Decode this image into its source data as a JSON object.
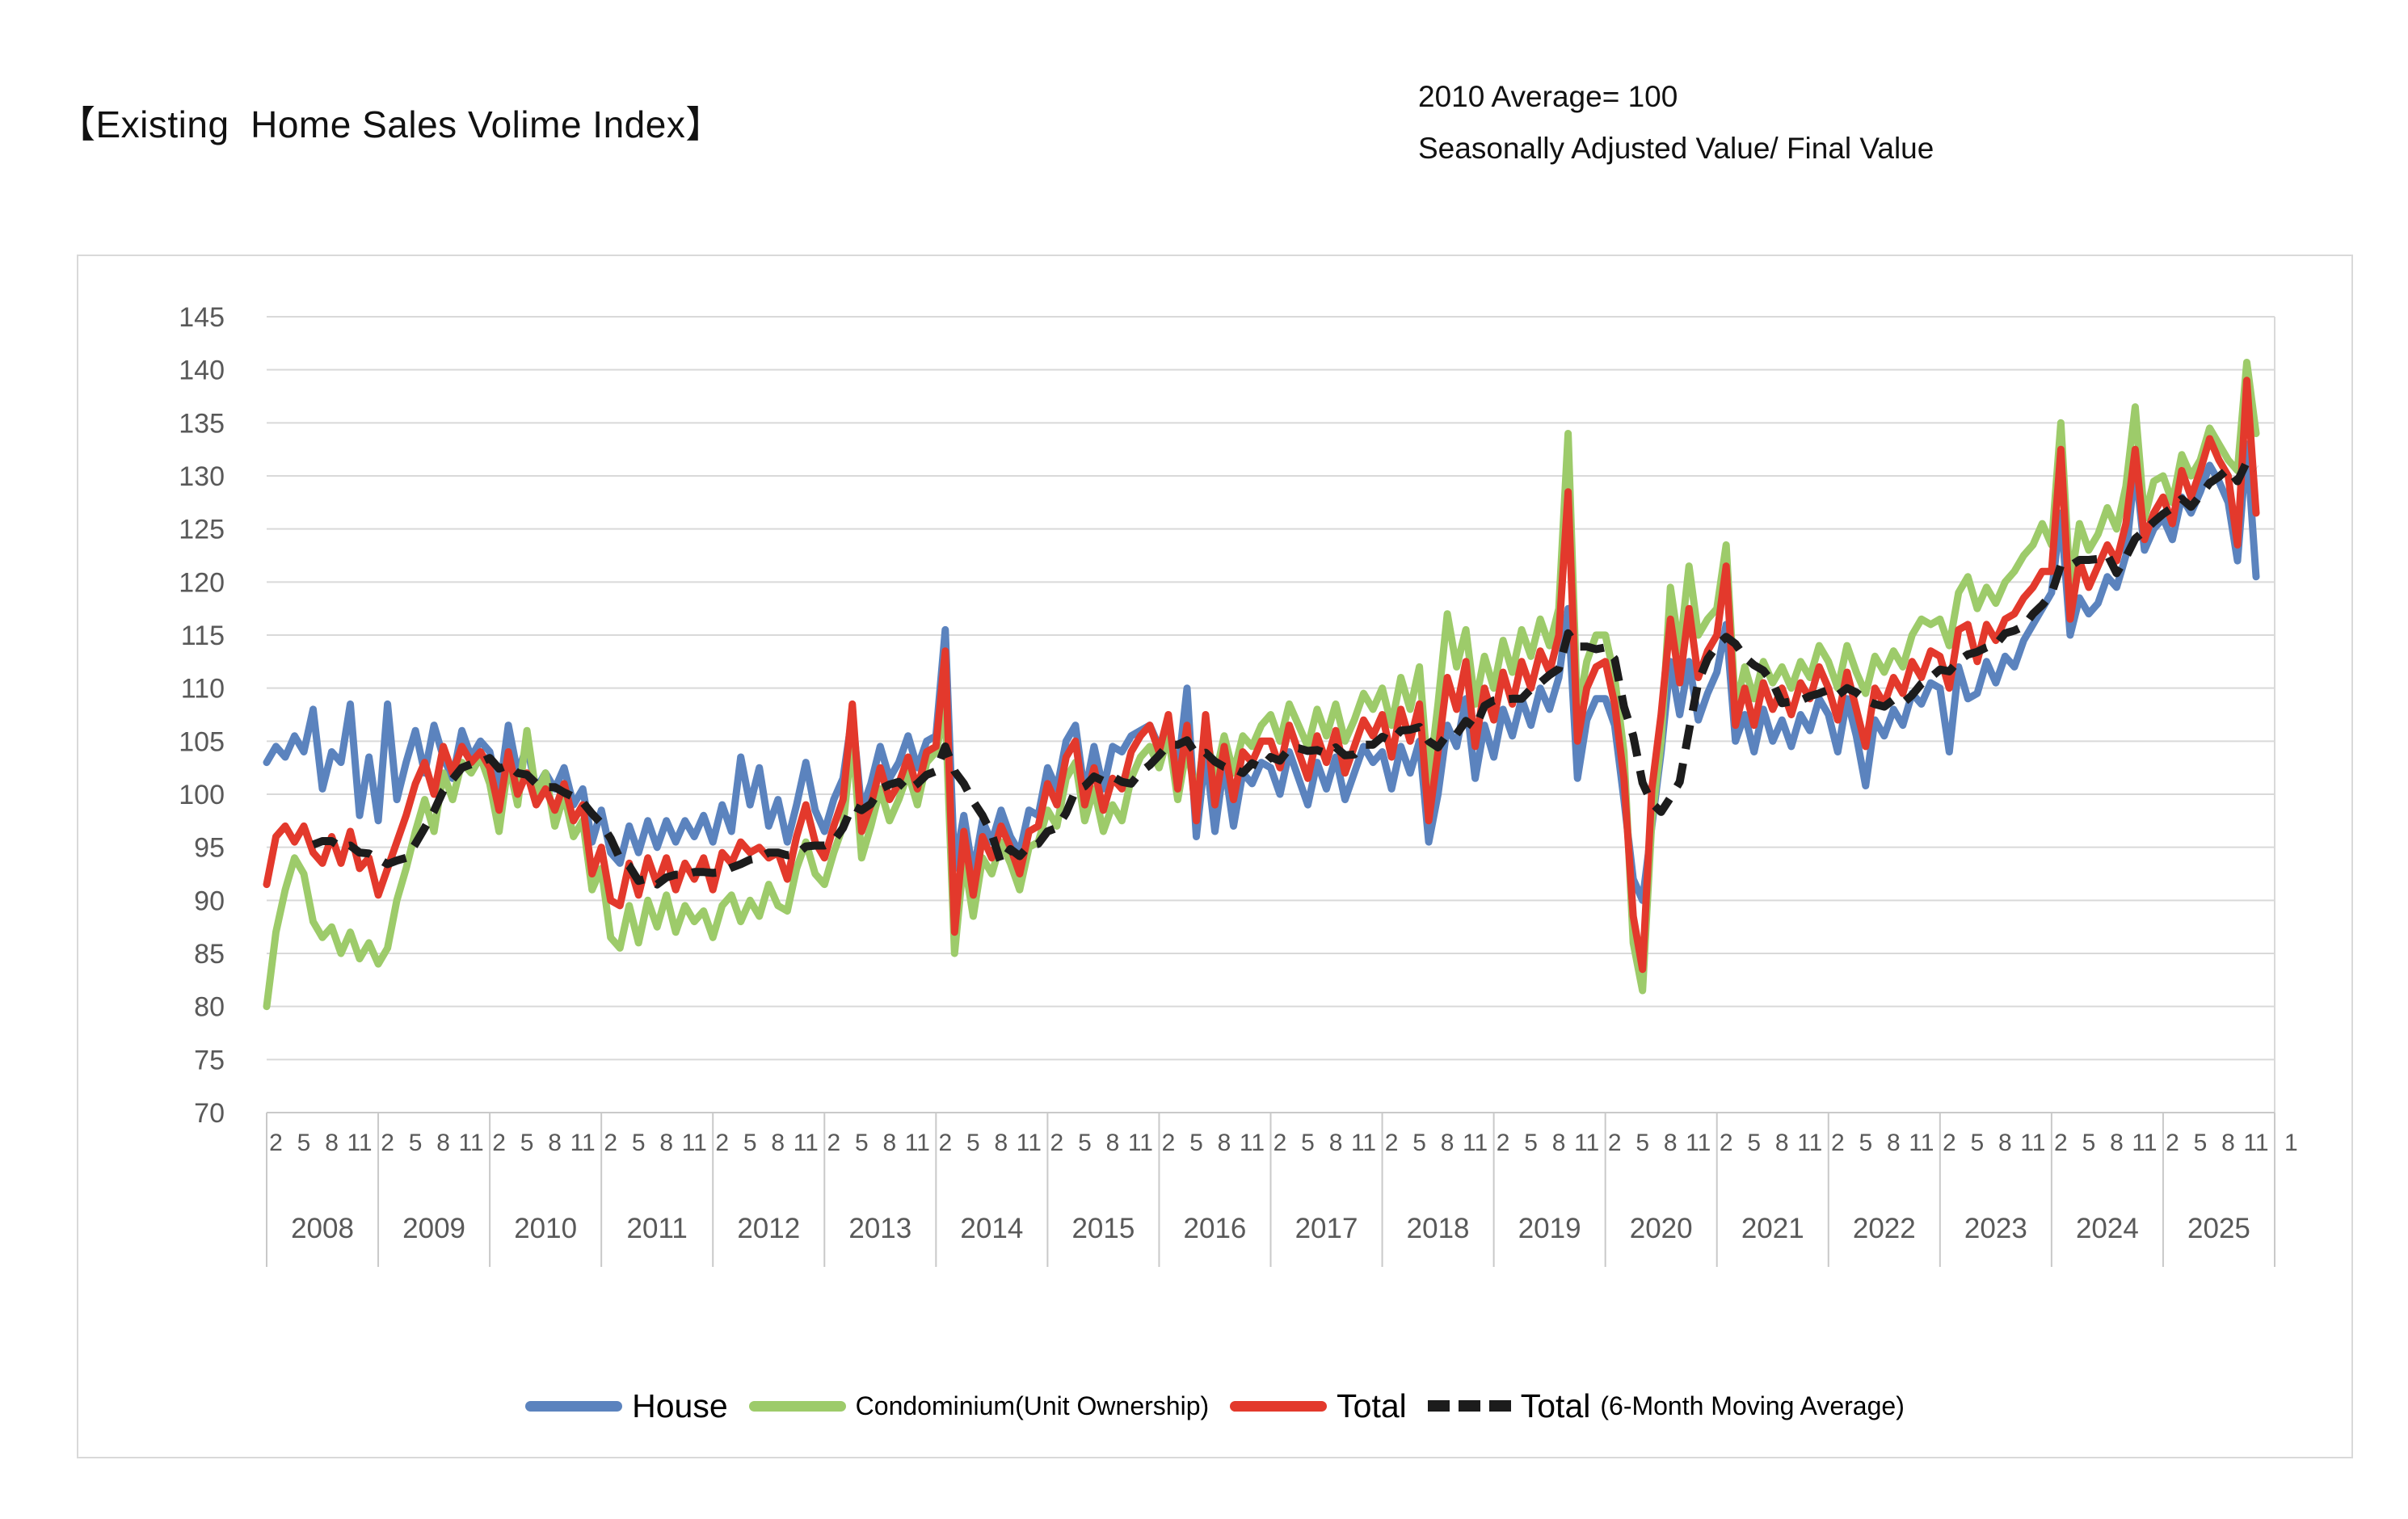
{
  "header": {
    "title": "【Existing  Home Sales Volime Index】",
    "note_line1": "2010 Average= 100",
    "note_line2": "Seasonally Adjusted Value/ Final Value"
  },
  "legend": {
    "house": "House",
    "condominium": "Condominium(Unit Ownership)",
    "total": "Total",
    "ma_main": "Total",
    "ma_suffix": "(6-Month Moving Average)"
  },
  "chart_data": {
    "type": "line",
    "title": "【Existing  Home Sales Volime Index】",
    "subtitle": "2010 Average= 100 / Seasonally Adjusted Value / Final Value",
    "ylim": [
      70,
      145
    ],
    "ytick_step": 5,
    "ytick_labels": [
      145,
      140,
      135,
      130,
      125,
      120,
      115,
      110,
      105,
      100,
      95,
      90,
      85,
      80,
      75,
      70
    ],
    "grid": "horizontal",
    "legend_position": "bottom",
    "x_axis": {
      "start_year": 2008,
      "start_month": 1,
      "years": [
        2008,
        2009,
        2010,
        2011,
        2012,
        2013,
        2014,
        2015,
        2016,
        2017,
        2018,
        2019,
        2020,
        2021,
        2022,
        2023,
        2024,
        2025
      ],
      "month_tick_labels": [
        2,
        5,
        8,
        11
      ],
      "trailing_tick_label": "1"
    },
    "colors": {
      "house": "#5B83BE",
      "condominium": "#9DCB6A",
      "total": "#E3392C",
      "moving_average": "#1c1c1c",
      "axis_text": "#595959",
      "gridline": "#d9d9d9",
      "separator": "#c9c9c9"
    },
    "series": [
      {
        "name": "House",
        "color": "#5B83BE",
        "style": "solid",
        "values": [
          103.0,
          104.5,
          103.5,
          105.5,
          104.0,
          108.0,
          100.5,
          104.0,
          103.0,
          108.5,
          98.0,
          103.5,
          97.5,
          108.5,
          99.5,
          103.0,
          106.0,
          102.0,
          106.5,
          103.5,
          101.5,
          106.0,
          103.5,
          105.0,
          104.0,
          100.0,
          106.5,
          102.0,
          104.5,
          100.5,
          102.0,
          100.5,
          102.5,
          99.0,
          100.5,
          95.5,
          98.5,
          94.5,
          93.5,
          97.0,
          94.5,
          97.5,
          95.0,
          97.5,
          95.5,
          97.5,
          96.0,
          98.0,
          95.5,
          99.0,
          96.5,
          103.5,
          99.0,
          102.5,
          97.0,
          99.5,
          95.5,
          99.0,
          103.0,
          98.5,
          96.5,
          99.5,
          101.5,
          107.5,
          98.5,
          101.0,
          104.5,
          101.5,
          103.0,
          105.5,
          102.5,
          105.0,
          105.5,
          115.5,
          93.0,
          98.0,
          92.5,
          97.5,
          95.5,
          98.5,
          96.0,
          94.5,
          98.5,
          98.0,
          102.5,
          100.5,
          105.0,
          106.5,
          100.0,
          104.5,
          100.5,
          104.5,
          104.0,
          105.5,
          106.0,
          106.5,
          104.5,
          106.0,
          102.0,
          110.0,
          96.0,
          104.0,
          96.5,
          103.0,
          97.0,
          102.0,
          101.0,
          103.0,
          102.5,
          100.0,
          104.0,
          101.5,
          99.0,
          103.0,
          100.5,
          103.5,
          99.5,
          102.0,
          104.5,
          103.0,
          104.0,
          100.5,
          104.5,
          102.0,
          105.0,
          95.5,
          100.0,
          106.5,
          104.5,
          109.0,
          101.5,
          106.5,
          103.5,
          108.0,
          105.5,
          109.0,
          106.5,
          110.0,
          108.0,
          111.0,
          117.5,
          101.5,
          107.0,
          109.0,
          109.0,
          106.5,
          99.5,
          92.0,
          90.0,
          97.0,
          104.0,
          112.5,
          107.5,
          112.5,
          107.0,
          109.5,
          111.5,
          116.0,
          105.0,
          107.5,
          104.0,
          108.0,
          105.0,
          107.0,
          104.5,
          107.5,
          106.0,
          109.0,
          107.5,
          104.0,
          109.0,
          105.5,
          100.8,
          107.0,
          105.5,
          108.0,
          106.5,
          109.5,
          108.5,
          110.5,
          110.0,
          104.0,
          112.0,
          109.0,
          109.5,
          112.5,
          110.5,
          113.0,
          112.0,
          114.5,
          116.0,
          117.5,
          119.0,
          126.5,
          115.0,
          118.5,
          117.0,
          118.0,
          120.5,
          119.5,
          122.5,
          131.0,
          123.0,
          125.0,
          126.0,
          124.0,
          128.0,
          126.5,
          128.5,
          131.0,
          129.5,
          127.5,
          122.0,
          133.0,
          120.5
        ]
      },
      {
        "name": "Condominium(Unit Ownership)",
        "color": "#9DCB6A",
        "style": "solid",
        "values": [
          80.0,
          87.0,
          91.0,
          94.0,
          92.5,
          88.0,
          86.5,
          87.5,
          85.0,
          87.0,
          84.5,
          86.0,
          84.0,
          85.5,
          90.0,
          93.0,
          96.5,
          99.5,
          96.5,
          102.0,
          99.5,
          103.0,
          102.0,
          103.5,
          101.0,
          96.5,
          103.0,
          99.0,
          106.0,
          100.0,
          102.0,
          97.0,
          100.0,
          96.0,
          97.5,
          91.0,
          93.0,
          86.5,
          85.5,
          89.5,
          86.0,
          90.0,
          87.5,
          90.5,
          87.0,
          89.5,
          88.0,
          89.0,
          86.5,
          89.5,
          90.5,
          88.0,
          90.0,
          88.5,
          91.5,
          89.5,
          89.0,
          93.0,
          95.5,
          92.5,
          91.5,
          94.5,
          97.0,
          105.5,
          94.0,
          97.0,
          100.5,
          97.5,
          99.5,
          102.0,
          99.0,
          103.0,
          104.0,
          108.0,
          85.0,
          94.0,
          88.5,
          94.0,
          92.5,
          95.5,
          93.5,
          91.0,
          95.0,
          95.5,
          98.5,
          97.0,
          101.5,
          103.0,
          97.5,
          100.5,
          96.5,
          99.0,
          97.5,
          101.5,
          103.5,
          104.5,
          102.5,
          105.5,
          99.5,
          104.5,
          99.5,
          106.0,
          101.5,
          105.5,
          102.0,
          105.5,
          104.5,
          106.5,
          107.5,
          105.0,
          108.5,
          106.5,
          104.5,
          108.0,
          105.5,
          108.5,
          105.0,
          107.0,
          109.5,
          108.0,
          110.0,
          106.5,
          111.0,
          108.0,
          112.0,
          101.0,
          108.5,
          117.0,
          112.0,
          115.5,
          108.5,
          113.0,
          110.0,
          114.5,
          111.5,
          115.5,
          113.0,
          116.5,
          114.0,
          117.5,
          134.0,
          107.5,
          112.5,
          115.0,
          115.0,
          111.0,
          104.0,
          86.0,
          81.5,
          97.5,
          105.0,
          119.5,
          113.5,
          121.5,
          115.0,
          116.5,
          117.5,
          123.5,
          108.0,
          112.0,
          109.0,
          112.5,
          110.5,
          112.0,
          110.0,
          112.5,
          111.0,
          114.0,
          112.5,
          110.0,
          114.0,
          111.5,
          109.5,
          113.0,
          111.5,
          113.5,
          112.0,
          115.0,
          116.5,
          116.0,
          116.5,
          114.0,
          119.0,
          120.5,
          117.5,
          119.5,
          118.0,
          120.0,
          121.0,
          122.5,
          123.5,
          125.5,
          123.5,
          135.0,
          119.5,
          125.5,
          123.0,
          124.5,
          127.0,
          125.0,
          129.0,
          136.5,
          126.0,
          129.5,
          130.0,
          127.5,
          132.0,
          130.0,
          131.5,
          134.5,
          133.0,
          131.5,
          130.5,
          140.7,
          134.0
        ]
      },
      {
        "name": "Total",
        "color": "#E3392C",
        "style": "solid",
        "values": [
          91.5,
          96.0,
          97.0,
          95.5,
          97.0,
          94.5,
          93.5,
          96.0,
          93.5,
          96.5,
          93.0,
          94.0,
          90.5,
          93.0,
          95.5,
          98.0,
          101.0,
          103.0,
          100.0,
          104.5,
          102.0,
          104.5,
          103.0,
          104.0,
          102.5,
          98.5,
          104.0,
          100.0,
          102.0,
          99.0,
          100.5,
          98.5,
          101.0,
          97.5,
          99.0,
          92.5,
          95.0,
          90.0,
          89.5,
          93.5,
          90.5,
          94.0,
          91.5,
          94.0,
          91.0,
          93.5,
          92.0,
          94.0,
          91.0,
          94.5,
          93.5,
          95.5,
          94.5,
          95.0,
          94.0,
          94.5,
          92.0,
          96.0,
          99.0,
          95.5,
          94.0,
          97.0,
          99.5,
          108.5,
          96.5,
          99.0,
          102.5,
          99.5,
          101.0,
          103.5,
          100.5,
          104.0,
          104.5,
          113.5,
          87.0,
          96.5,
          90.5,
          96.0,
          94.0,
          97.0,
          95.0,
          92.5,
          96.5,
          97.0,
          101.0,
          99.0,
          103.5,
          105.0,
          99.0,
          102.5,
          98.5,
          101.5,
          100.5,
          104.0,
          105.5,
          106.5,
          104.0,
          107.5,
          100.5,
          106.5,
          97.5,
          107.5,
          99.0,
          104.5,
          99.5,
          104.0,
          103.0,
          105.0,
          105.0,
          102.5,
          106.5,
          104.0,
          101.5,
          105.5,
          103.0,
          106.0,
          102.0,
          104.5,
          107.0,
          105.5,
          107.5,
          103.5,
          108.0,
          105.0,
          108.5,
          97.5,
          104.0,
          111.0,
          108.0,
          112.5,
          104.5,
          110.0,
          107.0,
          111.5,
          108.5,
          112.5,
          110.0,
          113.5,
          111.5,
          115.0,
          128.5,
          105.0,
          110.0,
          112.0,
          112.5,
          108.5,
          101.5,
          88.5,
          83.5,
          100.5,
          107.5,
          116.5,
          110.5,
          117.5,
          111.0,
          113.5,
          115.0,
          121.5,
          106.5,
          110.0,
          106.5,
          110.5,
          108.0,
          110.0,
          107.5,
          110.5,
          109.0,
          112.0,
          110.0,
          107.0,
          111.5,
          108.0,
          104.5,
          110.0,
          108.5,
          111.0,
          109.5,
          112.5,
          111.0,
          113.5,
          113.0,
          110.0,
          115.5,
          116.0,
          112.5,
          116.0,
          114.5,
          116.5,
          117.0,
          118.5,
          119.5,
          121.0,
          121.0,
          132.5,
          116.5,
          122.0,
          119.5,
          121.5,
          123.5,
          122.0,
          125.5,
          132.5,
          124.0,
          126.5,
          128.0,
          125.5,
          130.5,
          128.0,
          130.5,
          133.5,
          131.5,
          130.0,
          123.5,
          139.0,
          126.5
        ]
      },
      {
        "name": "Total(6-Month Moving Average)",
        "color": "#1c1c1c",
        "style": "dashed",
        "derived_from": "Total",
        "window": 6
      }
    ]
  }
}
